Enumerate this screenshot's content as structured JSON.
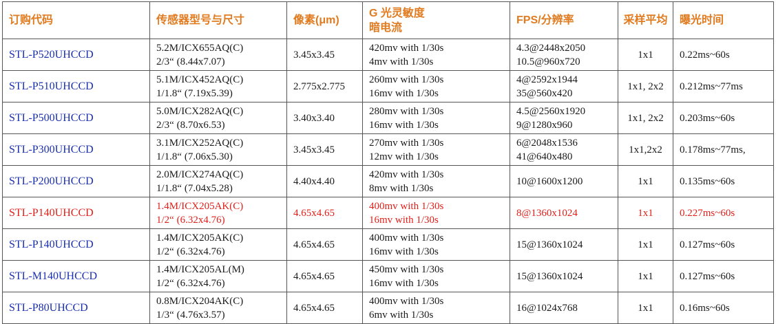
{
  "headers": {
    "code": "订购代码",
    "sensor": "传感器型号与尺寸",
    "pixel": "像素(μm)",
    "sensitivity_line1": "G 光灵敏度",
    "sensitivity_line2": "暗电流",
    "fps": "FPS/分辨率",
    "binning": "采样平均",
    "exposure": "曝光时间"
  },
  "rows": [
    {
      "code": "STL-P520UHCCD",
      "sensor1": "5.2M/ICX655AQ(C)",
      "sensor2": "2/3“ (8.44x7.07)",
      "pixel": "3.45x3.45",
      "sens1": "420mv with 1/30s",
      "sens2": "4mv with 1/30s",
      "fps1": "4.3@2448x2050",
      "fps2": "10.5@960x720",
      "binning": "1x1",
      "exposure": "0.22ms~60s"
    },
    {
      "code": "STL-P510UHCCD",
      "sensor1": "5.1M/ICX452AQ(C)",
      "sensor2": "1/1.8“ (7.19x5.39)",
      "pixel": "2.775x2.775",
      "sens1": "260mv with 1/30s",
      "sens2": "16mv with 1/30s",
      "fps1": "4@2592x1944",
      "fps2": "35@560x420",
      "binning": "1x1, 2x2",
      "exposure": "0.212ms~77ms"
    },
    {
      "code": "STL-P500UHCCD",
      "sensor1": "5.0M/ICX282AQ(C)",
      "sensor2": "2/3“ (8.70x6.53)",
      "pixel": "3.40x3.40",
      "sens1": "280mv with 1/30s",
      "sens2": "16mv with 1/30s",
      "fps1": "4.5@2560x1920",
      "fps2": "9@1280x960",
      "binning": "1x1, 2x2",
      "exposure": "0.203ms~60s"
    },
    {
      "code": "STL-P300UHCCD",
      "sensor1": "3.1M/ICX252AQ(C)",
      "sensor2": "1/1.8“ (7.06x5.30)",
      "pixel": "3.45x3.45",
      "sens1": "270mv with 1/30s",
      "sens2": "12mv with 1/30s",
      "fps1": "6@2048x1536",
      "fps2": "41@640x480",
      "binning": "1x1,2x2",
      "exposure": "0.178ms~77ms,"
    },
    {
      "code": "STL-P200UHCCD",
      "sensor1": "2.0M/ICX274AQ(C)",
      "sensor2": "1/1.8“ (7.04x5.28)",
      "pixel": "4.40x4.40",
      "sens1": "420mv with 1/30s",
      "sens2": "8mv with 1/30s",
      "fps1": "10@1600x1200",
      "fps2": "",
      "binning": "1x1",
      "exposure": "0.135ms~60s"
    },
    {
      "code": "STL-P140UHCCD",
      "sensor1": "1.4M/ICX205AK(C)",
      "sensor2": "1/2“ (6.32x4.76)",
      "pixel": "4.65x4.65",
      "sens1": "400mv with 1/30s",
      "sens2": "16mv with 1/30s",
      "fps1": "8@1360x1024",
      "fps2": "",
      "binning": "1x1",
      "exposure": "0.227ms~60s",
      "highlight": true
    },
    {
      "code": "STL-P140UHCCD",
      "sensor1": "1.4M/ICX205AK(C)",
      "sensor2": "1/2“ (6.32x4.76)",
      "pixel": "4.65x4.65",
      "sens1": "400mv with 1/30s",
      "sens2": "16mv with 1/30s",
      "fps1": "15@1360x1024",
      "fps2": "",
      "binning": "1x1",
      "exposure": "0.127ms~60s"
    },
    {
      "code": "STL-M140UHCCD",
      "sensor1": "1.4M/ICX205AL(M)",
      "sensor2": "1/2“ (6.32x4.76)",
      "pixel": "4.65x4.65",
      "sens1": "450mv with 1/30s",
      "sens2": "16mv with 1/30s",
      "fps1": "15@1360x1024",
      "fps2": "",
      "binning": "1x1",
      "exposure": "0.127ms~60s"
    },
    {
      "code": "STL-P80UHCCD",
      "sensor1": "0.8M/ICX204AK(C)",
      "sensor2": "1/3“ (4.76x3.57)",
      "pixel": "4.65x4.65",
      "sens1": "400mv with 1/30s",
      "sens2": "6mv with 1/30s",
      "fps1": "16@1024x768",
      "fps2": "",
      "binning": "1x1",
      "exposure": "0.16ms~60s"
    }
  ],
  "colors": {
    "header_text": "#e07b20",
    "code_text": "#1a2fb0",
    "highlight_text": "#e0201a",
    "body_text": "#1a1a1a",
    "border": "#555555"
  }
}
